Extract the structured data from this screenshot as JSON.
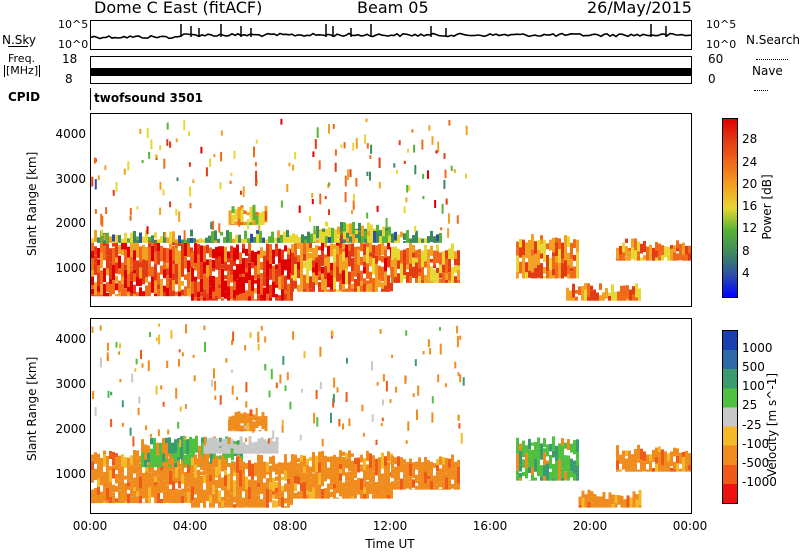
{
  "header": {
    "station": "Dome C East (fitACF)",
    "beam": "Beam 05",
    "date": "26/May/2015"
  },
  "noise_panel": {
    "left_label": "N.Sky",
    "right_label": "N.Search",
    "top_tick": "10^5",
    "bottom_tick": "10^0"
  },
  "freq_panel": {
    "left_label": "Freq.",
    "left_unit": "[MHz]",
    "right_label": "Nave",
    "left_top_tick": "18",
    "left_bottom_tick": "8",
    "right_top_tick": "60",
    "right_bottom_tick": "0"
  },
  "cpid_panel": {
    "label": "CPID",
    "program": "twofsound 3501"
  },
  "colors": {
    "power": [
      "#0000ff",
      "#2e4fa8",
      "#3d8a5c",
      "#58b336",
      "#e7d733",
      "#f2a122",
      "#f06a1a",
      "#e33c14",
      "#e00000"
    ],
    "velocity": [
      "#ee1111",
      "#f05a18",
      "#f08c1e",
      "#f5b828",
      "#c8c8c8",
      "#50c040",
      "#3a9a70",
      "#2e6aa8",
      "#1a3fb0"
    ],
    "velocity_gray": "#c8c8c8"
  },
  "chart_data": [
    {
      "type": "heatmap",
      "title": "",
      "xlabel": "",
      "ylabel": "Slant Range [km]",
      "xlim": [
        0,
        24
      ],
      "ylim": [
        180,
        4500
      ],
      "y_ticks": [
        "1000",
        "2000",
        "3000",
        "4000"
      ],
      "colorbar_label": "Power [dB]",
      "colorbar_ticks": [
        "4",
        "8",
        "12",
        "16",
        "20",
        "24",
        "28"
      ],
      "colorbar_range": [
        0,
        32
      ],
      "regions": [
        {
          "x": [
            0.0,
            4.0
          ],
          "y": [
            400,
            1700
          ],
          "level": 26
        },
        {
          "x": [
            4.0,
            8.0
          ],
          "y": [
            300,
            1600
          ],
          "level": 28
        },
        {
          "x": [
            8.0,
            12.0
          ],
          "y": [
            500,
            1700
          ],
          "level": 24
        },
        {
          "x": [
            12.0,
            14.7
          ],
          "y": [
            700,
            1600
          ],
          "level": 22
        },
        {
          "x": [
            17.0,
            19.5
          ],
          "y": [
            800,
            1800
          ],
          "level": 22
        },
        {
          "x": [
            19.0,
            22.0
          ],
          "y": [
            300,
            700
          ],
          "level": 22
        },
        {
          "x": [
            21.0,
            24.0
          ],
          "y": [
            1200,
            1700
          ],
          "level": 22
        },
        {
          "x": [
            5.5,
            7.0
          ],
          "y": [
            2000,
            2500
          ],
          "level": 18
        },
        {
          "x": [
            9.0,
            12.0
          ],
          "y": [
            1700,
            2100
          ],
          "level": 14
        },
        {
          "x": [
            0.0,
            14.0
          ],
          "y": [
            1600,
            1900
          ],
          "level": 12
        }
      ]
    },
    {
      "type": "heatmap",
      "title": "",
      "xlabel": "Time UT",
      "ylabel": "Slant Range [km]",
      "xlim": [
        0,
        24
      ],
      "ylim": [
        180,
        4500
      ],
      "x_ticks": [
        "00:00",
        "04:00",
        "08:00",
        "12:00",
        "16:00",
        "20:00",
        "00:00"
      ],
      "y_ticks": [
        "1000",
        "2000",
        "3000",
        "4000"
      ],
      "colorbar_label": "Velocity [m s^-1]",
      "colorbar_ticks": [
        "-1000",
        "-500",
        "-100",
        "-25",
        "25",
        "100",
        "500",
        "1000"
      ],
      "regions": [
        {
          "x": [
            0.0,
            4.0
          ],
          "y": [
            400,
            1600
          ],
          "level": -100
        },
        {
          "x": [
            2.0,
            6.0
          ],
          "y": [
            1200,
            1900
          ],
          "level": 100
        },
        {
          "x": [
            4.0,
            8.0
          ],
          "y": [
            300,
            1500
          ],
          "level": -100
        },
        {
          "x": [
            4.5,
            7.5
          ],
          "y": [
            1500,
            1900
          ],
          "level": 0
        },
        {
          "x": [
            8.0,
            12.0
          ],
          "y": [
            500,
            1600
          ],
          "level": -100
        },
        {
          "x": [
            12.0,
            14.7
          ],
          "y": [
            700,
            1500
          ],
          "level": -100
        },
        {
          "x": [
            17.0,
            19.5
          ],
          "y": [
            900,
            1900
          ],
          "level": 100
        },
        {
          "x": [
            19.5,
            22.0
          ],
          "y": [
            300,
            700
          ],
          "level": -100
        },
        {
          "x": [
            21.0,
            24.0
          ],
          "y": [
            1100,
            1700
          ],
          "level": -100
        },
        {
          "x": [
            5.5,
            7.0
          ],
          "y": [
            2000,
            2500
          ],
          "level": -100
        }
      ]
    }
  ]
}
